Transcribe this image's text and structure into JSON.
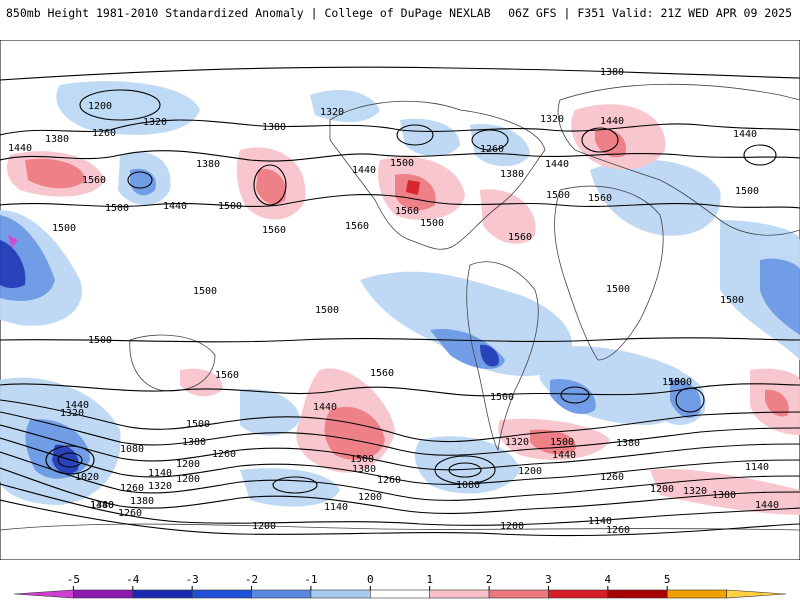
{
  "header": {
    "left": "850mb Height 1981-2010 Standardized Anomaly | College of DuPage NEXLAB",
    "right": "06Z GFS | F351 Valid: 21Z WED APR 09 2025"
  },
  "colorbar": {
    "ticks": [
      "-5",
      "-4",
      "-3",
      "-2",
      "-1",
      "0",
      "1",
      "2",
      "3",
      "4",
      "5"
    ],
    "colors": [
      "#d040d0",
      "#8a1ab0",
      "#1a2ab4",
      "#2050d8",
      "#5a88e0",
      "#a8cbf0",
      "#ffffff",
      "#f8c0c8",
      "#ee7880",
      "#d81c28",
      "#a80000",
      "#f0a000",
      "#ffd040"
    ]
  },
  "contour_labels": [
    "1380",
    "1200",
    "1320",
    "1260",
    "1440",
    "1380",
    "1560",
    "1500",
    "1380",
    "1500",
    "1440",
    "1500",
    "1560",
    "1500",
    "1320",
    "1380",
    "1260",
    "1320",
    "1440",
    "1380",
    "1500",
    "1560",
    "1560",
    "1500",
    "1440",
    "1440",
    "1440",
    "1560",
    "1500",
    "1500",
    "1500",
    "1560",
    "1500",
    "1500",
    "1500",
    "1500",
    "1500",
    "1560",
    "1560",
    "1440",
    "1320",
    "1440",
    "1500",
    "1380",
    "1260",
    "1200",
    "1080",
    "1140",
    "1200",
    "1320",
    "1020",
    "1260",
    "1380",
    "1380",
    "1440",
    "1260",
    "1500",
    "1380",
    "1260",
    "1200",
    "1140",
    "1200",
    "1200",
    "1140",
    "1260",
    "1080",
    "1200",
    "1320",
    "1500",
    "1440",
    "1500",
    "1380",
    "1260",
    "1140",
    "1200",
    "1320",
    "1380",
    "1440"
  ]
}
